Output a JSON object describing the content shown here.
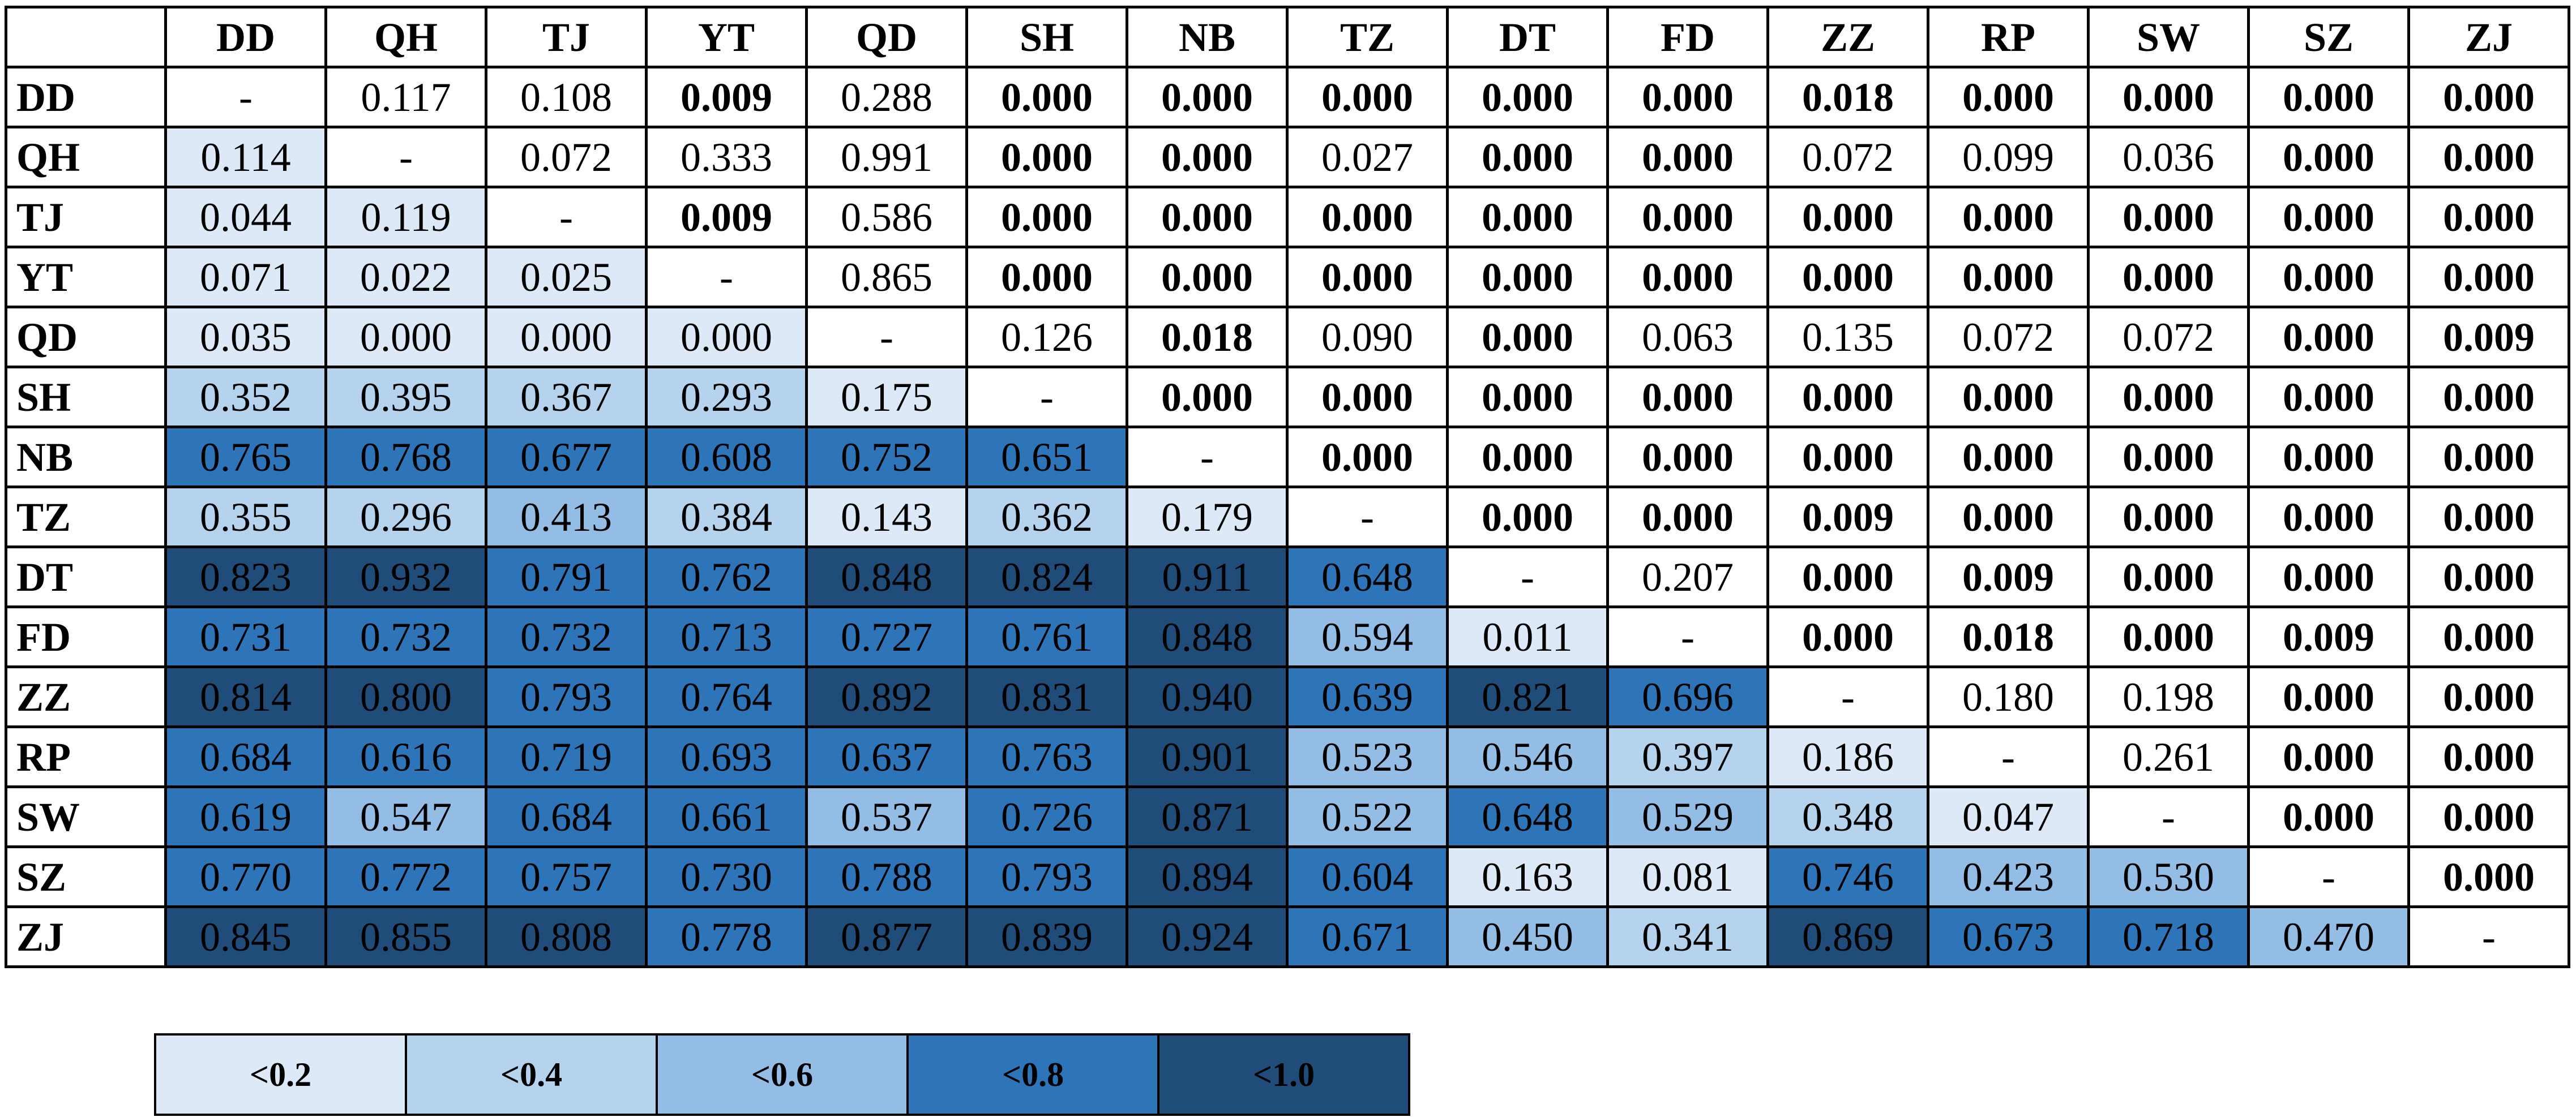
{
  "chart_data": {
    "type": "heatmap",
    "labels": [
      "DD",
      "QH",
      "TJ",
      "YT",
      "QD",
      "SH",
      "NB",
      "TZ",
      "DT",
      "FD",
      "ZZ",
      "RP",
      "SW",
      "SZ",
      "ZJ"
    ],
    "matrix": [
      [
        "-",
        "0.117",
        "0.108",
        "0.009",
        "0.288",
        "0.000",
        "0.000",
        "0.000",
        "0.000",
        "0.000",
        "0.018",
        "0.000",
        "0.000",
        "0.000",
        "0.000"
      ],
      [
        "0.114",
        "-",
        "0.072",
        "0.333",
        "0.991",
        "0.000",
        "0.000",
        "0.027",
        "0.000",
        "0.000",
        "0.072",
        "0.099",
        "0.036",
        "0.000",
        "0.000"
      ],
      [
        "0.044",
        "0.119",
        "-",
        "0.009",
        "0.586",
        "0.000",
        "0.000",
        "0.000",
        "0.000",
        "0.000",
        "0.000",
        "0.000",
        "0.000",
        "0.000",
        "0.000"
      ],
      [
        "0.071",
        "0.022",
        "0.025",
        "-",
        "0.865",
        "0.000",
        "0.000",
        "0.000",
        "0.000",
        "0.000",
        "0.000",
        "0.000",
        "0.000",
        "0.000",
        "0.000"
      ],
      [
        "0.035",
        "0.000",
        "0.000",
        "0.000",
        "-",
        "0.126",
        "0.018",
        "0.090",
        "0.000",
        "0.063",
        "0.135",
        "0.072",
        "0.072",
        "0.000",
        "0.009"
      ],
      [
        "0.352",
        "0.395",
        "0.367",
        "0.293",
        "0.175",
        "-",
        "0.000",
        "0.000",
        "0.000",
        "0.000",
        "0.000",
        "0.000",
        "0.000",
        "0.000",
        "0.000"
      ],
      [
        "0.765",
        "0.768",
        "0.677",
        "0.608",
        "0.752",
        "0.651",
        "-",
        "0.000",
        "0.000",
        "0.000",
        "0.000",
        "0.000",
        "0.000",
        "0.000",
        "0.000"
      ],
      [
        "0.355",
        "0.296",
        "0.413",
        "0.384",
        "0.143",
        "0.362",
        "0.179",
        "-",
        "0.000",
        "0.000",
        "0.009",
        "0.000",
        "0.000",
        "0.000",
        "0.000"
      ],
      [
        "0.823",
        "0.932",
        "0.791",
        "0.762",
        "0.848",
        "0.824",
        "0.911",
        "0.648",
        "-",
        "0.207",
        "0.000",
        "0.009",
        "0.000",
        "0.000",
        "0.000"
      ],
      [
        "0.731",
        "0.732",
        "0.732",
        "0.713",
        "0.727",
        "0.761",
        "0.848",
        "0.594",
        "0.011",
        "-",
        "0.000",
        "0.018",
        "0.000",
        "0.009",
        "0.000"
      ],
      [
        "0.814",
        "0.800",
        "0.793",
        "0.764",
        "0.892",
        "0.831",
        "0.940",
        "0.639",
        "0.821",
        "0.696",
        "-",
        "0.180",
        "0.198",
        "0.000",
        "0.000"
      ],
      [
        "0.684",
        "0.616",
        "0.719",
        "0.693",
        "0.637",
        "0.763",
        "0.901",
        "0.523",
        "0.546",
        "0.397",
        "0.186",
        "-",
        "0.261",
        "0.000",
        "0.000"
      ],
      [
        "0.619",
        "0.547",
        "0.684",
        "0.661",
        "0.537",
        "0.726",
        "0.871",
        "0.522",
        "0.648",
        "0.529",
        "0.348",
        "0.047",
        "-",
        "0.000",
        "0.000"
      ],
      [
        "0.770",
        "0.772",
        "0.757",
        "0.730",
        "0.788",
        "0.793",
        "0.894",
        "0.604",
        "0.163",
        "0.081",
        "0.746",
        "0.423",
        "0.530",
        "-",
        "0.000"
      ],
      [
        "0.845",
        "0.855",
        "0.808",
        "0.778",
        "0.877",
        "0.839",
        "0.924",
        "0.671",
        "0.450",
        "0.341",
        "0.869",
        "0.673",
        "0.718",
        "0.470",
        "-"
      ]
    ],
    "bold_threshold_upper": 0.02,
    "legend": [
      {
        "label": "<0.2",
        "max": 0.2,
        "color": "#dde9f6"
      },
      {
        "label": "<0.4",
        "max": 0.4,
        "color": "#b6d3ee"
      },
      {
        "label": "<0.6",
        "max": 0.6,
        "color": "#94bde5"
      },
      {
        "label": "<0.8",
        "max": 0.8,
        "color": "#2e74b8"
      },
      {
        "label": "<1.0",
        "max": 1.0,
        "color": "#1f4c79"
      }
    ]
  }
}
